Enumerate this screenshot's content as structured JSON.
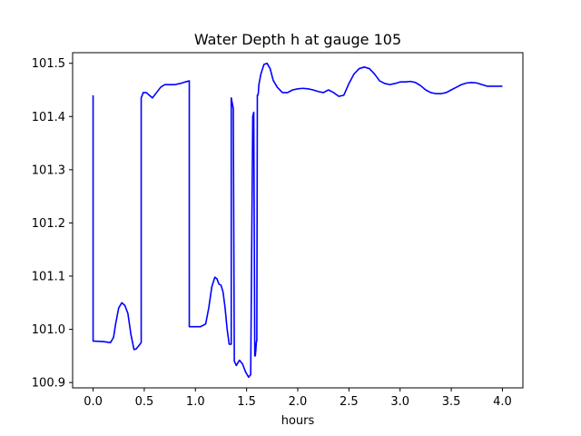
{
  "chart_data": {
    "type": "line",
    "title": "Water Depth h at gauge 105",
    "xlabel": "hours",
    "ylabel": "",
    "xlim": [
      -0.2,
      4.2
    ],
    "ylim": [
      100.89,
      101.52
    ],
    "xticks": [
      0.0,
      0.5,
      1.0,
      1.5,
      2.0,
      2.5,
      3.0,
      3.5,
      4.0
    ],
    "xtick_labels": [
      "0.0",
      "0.5",
      "1.0",
      "1.5",
      "2.0",
      "2.5",
      "3.0",
      "3.5",
      "4.0"
    ],
    "yticks": [
      100.9,
      101.0,
      101.1,
      101.2,
      101.3,
      101.4,
      101.5
    ],
    "ytick_labels": [
      "100.9",
      "101.0",
      "101.1",
      "101.2",
      "101.3",
      "101.4",
      "101.5"
    ],
    "grid": false,
    "series": [
      {
        "color": "#0000ff",
        "x": [
          0.0,
          0.0,
          0.1,
          0.17,
          0.2,
          0.22,
          0.25,
          0.28,
          0.31,
          0.34,
          0.37,
          0.4,
          0.42,
          0.45,
          0.47,
          0.47,
          0.49,
          0.52,
          0.55,
          0.58,
          0.62,
          0.66,
          0.7,
          0.75,
          0.8,
          0.85,
          0.9,
          0.94,
          0.94,
          1.0,
          1.05,
          1.1,
          1.13,
          1.16,
          1.19,
          1.21,
          1.23,
          1.25,
          1.27,
          1.29,
          1.31,
          1.33,
          1.35,
          1.35,
          1.37,
          1.37,
          1.38,
          1.4,
          1.43,
          1.46,
          1.49,
          1.52,
          1.54,
          1.56,
          1.57,
          1.58,
          1.585,
          1.59,
          1.595,
          1.6,
          1.605,
          1.61,
          1.615,
          1.62,
          1.64,
          1.67,
          1.7,
          1.73,
          1.76,
          1.8,
          1.85,
          1.9,
          1.95,
          2.0,
          2.05,
          2.1,
          2.15,
          2.2,
          2.25,
          2.3,
          2.35,
          2.4,
          2.45,
          2.5,
          2.55,
          2.6,
          2.65,
          2.7,
          2.75,
          2.8,
          2.85,
          2.9,
          2.95,
          3.0,
          3.05,
          3.1,
          3.15,
          3.2,
          3.25,
          3.3,
          3.35,
          3.4,
          3.45,
          3.5,
          3.55,
          3.6,
          3.65,
          3.7,
          3.75,
          3.8,
          3.85,
          3.9,
          3.95,
          4.0
        ],
        "y": [
          101.44,
          100.978,
          100.977,
          100.975,
          100.985,
          101.01,
          101.04,
          101.05,
          101.045,
          101.03,
          100.99,
          100.962,
          100.963,
          100.97,
          100.975,
          101.435,
          101.445,
          101.445,
          101.44,
          101.435,
          101.445,
          101.455,
          101.46,
          101.46,
          101.46,
          101.462,
          101.465,
          101.467,
          101.005,
          101.005,
          101.005,
          101.01,
          101.04,
          101.08,
          101.098,
          101.095,
          101.085,
          101.083,
          101.07,
          101.04,
          101.0,
          100.972,
          100.972,
          101.435,
          101.415,
          101.41,
          100.94,
          100.932,
          100.942,
          100.935,
          100.92,
          100.91,
          100.915,
          101.4,
          101.408,
          100.95,
          100.95,
          100.96,
          100.975,
          100.98,
          101.44,
          101.44,
          101.445,
          101.46,
          101.48,
          101.498,
          101.5,
          101.49,
          101.468,
          101.455,
          101.445,
          101.445,
          101.45,
          101.452,
          101.453,
          101.452,
          101.45,
          101.447,
          101.445,
          101.45,
          101.445,
          101.438,
          101.44,
          101.462,
          101.48,
          101.49,
          101.493,
          101.49,
          101.48,
          101.467,
          101.462,
          101.46,
          101.462,
          101.465,
          101.465,
          101.466,
          101.464,
          101.458,
          101.45,
          101.445,
          101.443,
          101.443,
          101.445,
          101.45,
          101.455,
          101.46,
          101.463,
          101.464,
          101.463,
          101.46,
          101.457,
          101.457,
          101.457,
          101.457
        ]
      }
    ]
  }
}
